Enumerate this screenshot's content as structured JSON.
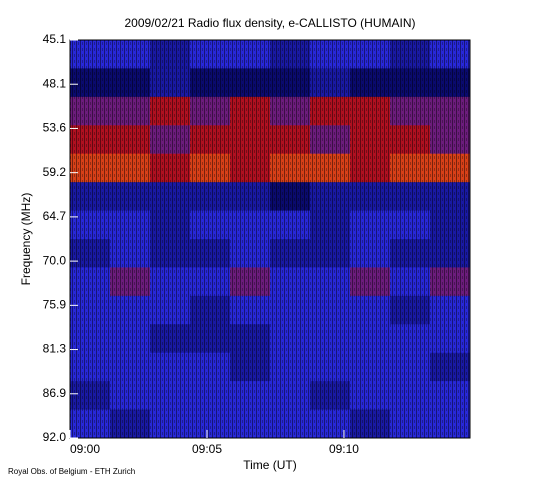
{
  "chart_data": {
    "type": "heatmap",
    "title": "2009/02/21  Radio flux density, e-CALLISTO (HUMAIN)",
    "x_label": "Time (UT)",
    "y_label": "Frequency (MHz)",
    "footer": "Royal Obs. of Belgium - ETH Zurich",
    "xlim": [
      540,
      554.6
    ],
    "xticks": [
      {
        "value": 540,
        "label": "09:00"
      },
      {
        "value": 545,
        "label": "09:05"
      },
      {
        "value": 550,
        "label": "09:10"
      }
    ],
    "yticks": [
      {
        "value": 45.1,
        "label": "45.1"
      },
      {
        "value": 48.1,
        "label": "48.1"
      },
      {
        "value": 53.6,
        "label": "53.6"
      },
      {
        "value": 59.2,
        "label": "59.2"
      },
      {
        "value": 64.7,
        "label": "64.7"
      },
      {
        "value": 70,
        "label": "70.0"
      },
      {
        "value": 75.9,
        "label": "75.9"
      },
      {
        "value": 81.3,
        "label": "81.3"
      },
      {
        "value": 86.9,
        "label": "86.9"
      },
      {
        "value": 92,
        "label": "92.0"
      }
    ],
    "colorscale": [
      [
        0,
        "#000000"
      ],
      [
        3,
        "#0a0a6e"
      ],
      [
        5,
        "#2828d8"
      ],
      [
        7,
        "#b01020"
      ],
      [
        9,
        "#ff7010"
      ],
      [
        10,
        "#ffff60"
      ]
    ],
    "z": [
      [
        5,
        5,
        4,
        5,
        5,
        4,
        5,
        5,
        4,
        5
      ],
      [
        3,
        3,
        4,
        3,
        3,
        3,
        4,
        3,
        3,
        3
      ],
      [
        6,
        6,
        7,
        6,
        7,
        6,
        7,
        7,
        6,
        6
      ],
      [
        7,
        7,
        6,
        7,
        7,
        7,
        6,
        7,
        7,
        6
      ],
      [
        8,
        8,
        7,
        8,
        7,
        8,
        8,
        7,
        8,
        8
      ],
      [
        4,
        4,
        4,
        4,
        4,
        3,
        4,
        4,
        4,
        4
      ],
      [
        5,
        5,
        4,
        5,
        5,
        5,
        4,
        5,
        5,
        4
      ],
      [
        4,
        5,
        4,
        4,
        5,
        4,
        4,
        5,
        4,
        4
      ],
      [
        5,
        6,
        5,
        5,
        6,
        5,
        5,
        6,
        5,
        6
      ],
      [
        5,
        5,
        5,
        4,
        5,
        5,
        5,
        5,
        4,
        5
      ],
      [
        5,
        5,
        4,
        4,
        4,
        5,
        5,
        5,
        5,
        5
      ],
      [
        5,
        5,
        5,
        5,
        4,
        5,
        5,
        5,
        5,
        4
      ],
      [
        4,
        5,
        5,
        5,
        5,
        5,
        4,
        5,
        5,
        5
      ],
      [
        5,
        4,
        5,
        5,
        5,
        5,
        5,
        4,
        5,
        5
      ]
    ]
  }
}
